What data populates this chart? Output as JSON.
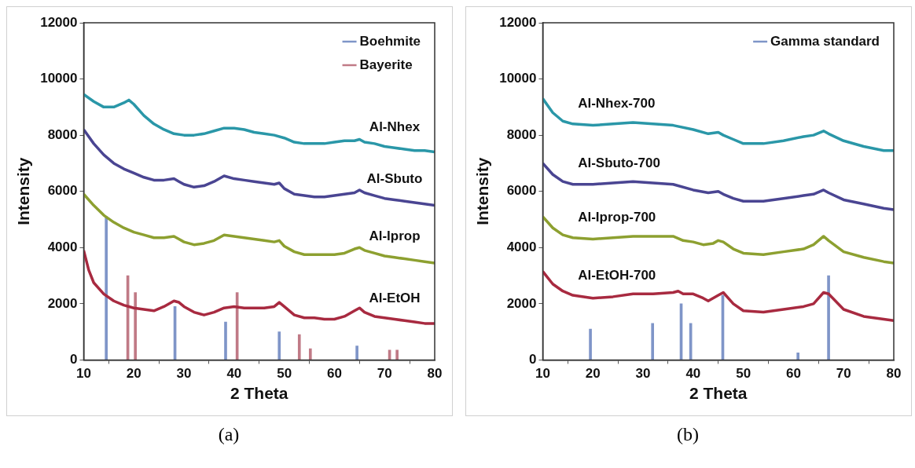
{
  "chart_data": [
    {
      "type": "line",
      "xlabel": "2 Theta",
      "ylabel": "Intensity",
      "xlim": [
        10,
        80
      ],
      "ylim": [
        0,
        12000
      ],
      "xticks": [
        10,
        20,
        30,
        40,
        50,
        60,
        70,
        80
      ],
      "yticks": [
        0,
        2000,
        4000,
        6000,
        8000,
        10000,
        12000
      ],
      "grid": false,
      "legend": "top right",
      "annotations": [
        "(a)"
      ],
      "series": [
        {
          "name": "Al-Nhex",
          "color": "#2a97a8",
          "x": [
            10,
            12,
            14,
            16,
            18,
            19,
            20,
            22,
            24,
            26,
            28,
            30,
            32,
            34,
            36,
            38,
            40,
            42,
            44,
            46,
            48,
            50,
            52,
            54,
            56,
            58,
            60,
            62,
            64,
            65,
            66,
            68,
            70,
            72,
            74,
            76,
            78,
            80
          ],
          "values": [
            9450,
            9200,
            9000,
            9000,
            9150,
            9250,
            9100,
            8700,
            8400,
            8200,
            8050,
            8000,
            8000,
            8050,
            8150,
            8250,
            8250,
            8200,
            8100,
            8050,
            8000,
            7900,
            7750,
            7700,
            7700,
            7700,
            7750,
            7800,
            7800,
            7850,
            7750,
            7700,
            7600,
            7550,
            7500,
            7450,
            7450,
            7400
          ]
        },
        {
          "name": "Al-Sbuto",
          "color": "#4a4592",
          "x": [
            10,
            12,
            14,
            16,
            18,
            20,
            22,
            24,
            26,
            28,
            29,
            30,
            32,
            34,
            36,
            38,
            40,
            42,
            44,
            46,
            48,
            49,
            50,
            52,
            54,
            56,
            58,
            60,
            62,
            64,
            65,
            66,
            68,
            70,
            72,
            74,
            76,
            78,
            80
          ],
          "values": [
            8200,
            7700,
            7300,
            7000,
            6800,
            6650,
            6500,
            6400,
            6400,
            6450,
            6350,
            6250,
            6150,
            6200,
            6350,
            6550,
            6450,
            6400,
            6350,
            6300,
            6250,
            6300,
            6100,
            5900,
            5850,
            5800,
            5800,
            5850,
            5900,
            5950,
            6050,
            5950,
            5850,
            5750,
            5700,
            5650,
            5600,
            5550,
            5500
          ]
        },
        {
          "name": "Al-Iprop",
          "color": "#8da030",
          "x": [
            10,
            12,
            14,
            16,
            18,
            20,
            22,
            24,
            26,
            28,
            29,
            30,
            32,
            34,
            36,
            38,
            40,
            42,
            44,
            46,
            48,
            49,
            50,
            52,
            54,
            56,
            58,
            60,
            62,
            64,
            65,
            66,
            68,
            70,
            72,
            74,
            76,
            78,
            80
          ],
          "values": [
            5900,
            5500,
            5150,
            4900,
            4700,
            4550,
            4450,
            4350,
            4350,
            4400,
            4300,
            4200,
            4100,
            4150,
            4250,
            4450,
            4400,
            4350,
            4300,
            4250,
            4200,
            4250,
            4050,
            3850,
            3750,
            3750,
            3750,
            3750,
            3800,
            3950,
            4000,
            3900,
            3800,
            3700,
            3650,
            3600,
            3550,
            3500,
            3450
          ]
        },
        {
          "name": "Al-EtOH",
          "color": "#a82a40",
          "x": [
            10,
            11,
            12,
            14,
            16,
            18,
            20,
            22,
            24,
            26,
            28,
            29,
            30,
            32,
            34,
            36,
            38,
            40,
            42,
            44,
            46,
            48,
            49,
            50,
            52,
            54,
            56,
            58,
            60,
            62,
            64,
            65,
            66,
            68,
            70,
            72,
            74,
            76,
            78,
            80
          ],
          "values": [
            3900,
            3200,
            2750,
            2350,
            2100,
            1950,
            1850,
            1800,
            1750,
            1900,
            2100,
            2050,
            1900,
            1700,
            1600,
            1700,
            1850,
            1900,
            1850,
            1850,
            1850,
            1900,
            2050,
            1900,
            1600,
            1500,
            1500,
            1450,
            1450,
            1550,
            1750,
            1850,
            1700,
            1550,
            1500,
            1450,
            1400,
            1350,
            1300,
            1300
          ]
        },
        {
          "name": "Boehmite",
          "type": "bar",
          "color": "#7f95c8",
          "x": [
            14.5,
            28.2,
            38.3,
            49,
            64.5
          ],
          "values": [
            5100,
            1900,
            1350,
            1000,
            500
          ]
        },
        {
          "name": "Bayerite",
          "type": "bar",
          "color": "#c07a86",
          "x": [
            18.8,
            20.3,
            40.6,
            53,
            55.2,
            71,
            72.5
          ],
          "values": [
            3000,
            2400,
            2400,
            900,
            400,
            350,
            350
          ]
        }
      ]
    },
    {
      "type": "line",
      "xlabel": "2 Theta",
      "ylabel": "Intensity",
      "xlim": [
        10,
        80
      ],
      "ylim": [
        0,
        12000
      ],
      "xticks": [
        10,
        20,
        30,
        40,
        50,
        60,
        70,
        80
      ],
      "yticks": [
        0,
        2000,
        4000,
        6000,
        8000,
        10000,
        12000
      ],
      "grid": false,
      "legend": "top right",
      "annotations": [
        "(b)"
      ],
      "series": [
        {
          "name": "Al-Nhex-700",
          "color": "#2a97a8",
          "x": [
            10,
            12,
            14,
            16,
            20,
            24,
            28,
            32,
            36,
            40,
            43,
            45,
            46,
            48,
            50,
            54,
            58,
            62,
            64,
            66,
            67,
            70,
            74,
            78,
            80
          ],
          "values": [
            9300,
            8800,
            8500,
            8400,
            8350,
            8400,
            8450,
            8400,
            8350,
            8200,
            8050,
            8100,
            8000,
            7850,
            7700,
            7700,
            7800,
            7950,
            8000,
            8150,
            8050,
            7800,
            7600,
            7450,
            7450
          ]
        },
        {
          "name": "Al-Sbuto-700",
          "color": "#4a4592",
          "x": [
            10,
            12,
            14,
            16,
            20,
            24,
            28,
            32,
            36,
            40,
            43,
            45,
            46,
            48,
            50,
            54,
            58,
            62,
            64,
            66,
            67,
            70,
            74,
            78,
            80
          ],
          "values": [
            7000,
            6600,
            6350,
            6250,
            6250,
            6300,
            6350,
            6300,
            6250,
            6050,
            5950,
            6000,
            5900,
            5750,
            5650,
            5650,
            5750,
            5850,
            5900,
            6050,
            5950,
            5700,
            5550,
            5400,
            5350
          ]
        },
        {
          "name": "Al-Iprop-700",
          "color": "#8da030",
          "x": [
            10,
            12,
            14,
            16,
            20,
            24,
            28,
            32,
            36,
            38,
            40,
            42,
            44,
            45,
            46,
            48,
            50,
            54,
            58,
            62,
            64,
            66,
            67,
            70,
            74,
            78,
            80
          ],
          "values": [
            5100,
            4700,
            4450,
            4350,
            4300,
            4350,
            4400,
            4400,
            4400,
            4250,
            4200,
            4100,
            4150,
            4250,
            4200,
            3950,
            3800,
            3750,
            3850,
            3950,
            4100,
            4400,
            4250,
            3850,
            3650,
            3500,
            3450
          ]
        },
        {
          "name": "Al-EtOH-700",
          "color": "#a82a40",
          "x": [
            10,
            12,
            14,
            16,
            20,
            24,
            28,
            32,
            36,
            37,
            38,
            40,
            42,
            43,
            45,
            46,
            48,
            50,
            54,
            58,
            62,
            64,
            66,
            67,
            70,
            74,
            78,
            80
          ],
          "values": [
            3150,
            2700,
            2450,
            2300,
            2200,
            2250,
            2350,
            2350,
            2400,
            2450,
            2350,
            2350,
            2200,
            2100,
            2300,
            2400,
            2000,
            1750,
            1700,
            1800,
            1900,
            2000,
            2400,
            2350,
            1800,
            1550,
            1450,
            1400
          ]
        },
        {
          "name": "Gamma standard",
          "type": "bar",
          "color": "#7f95c8",
          "x": [
            19.5,
            31.9,
            37.6,
            39.5,
            45.9,
            60.9,
            67
          ],
          "values": [
            1100,
            1300,
            2000,
            1300,
            2300,
            250,
            3000
          ]
        }
      ]
    }
  ]
}
